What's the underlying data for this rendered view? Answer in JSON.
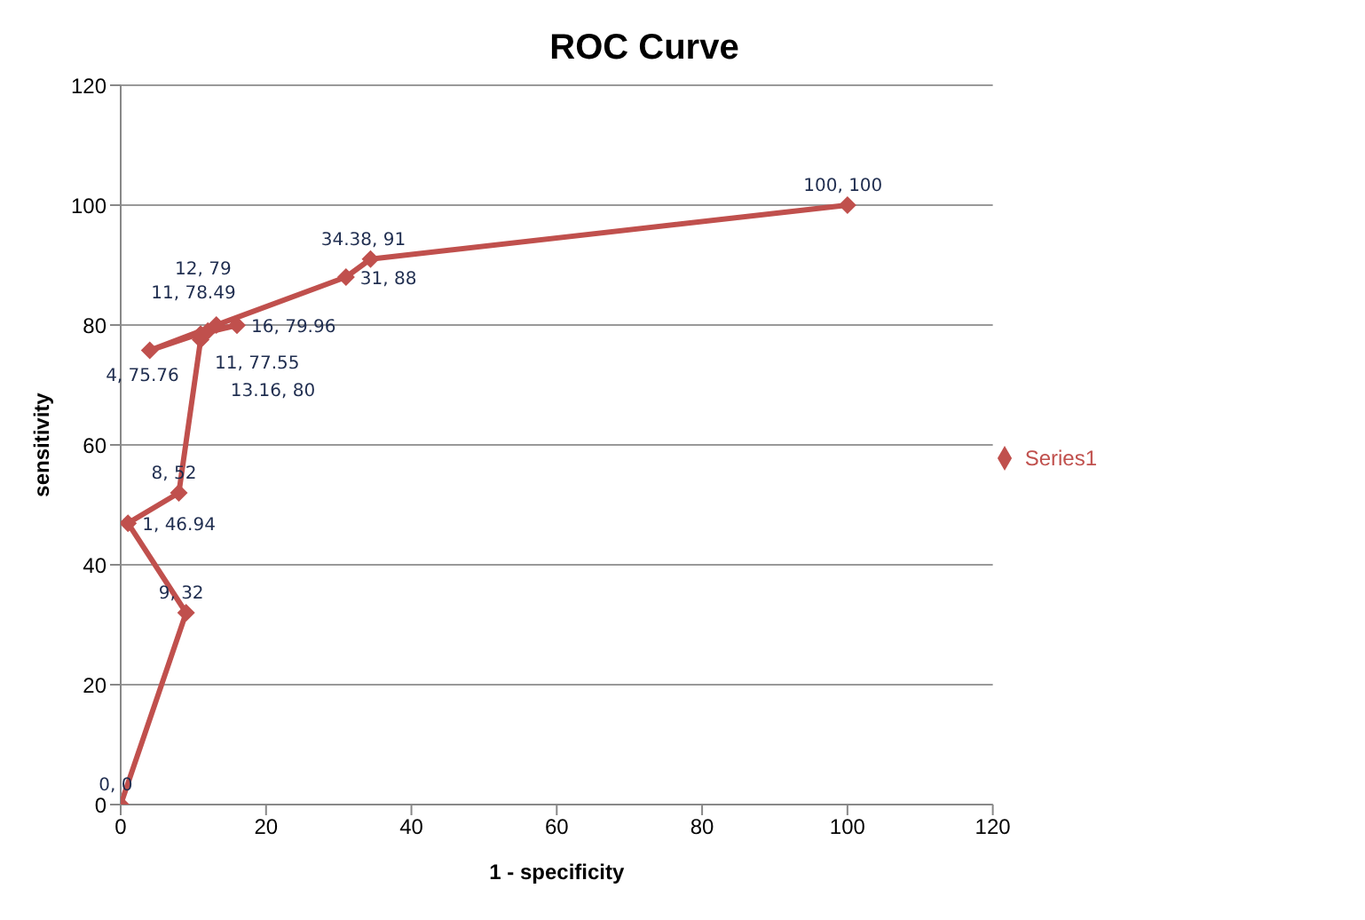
{
  "chart_data": {
    "type": "line",
    "title": "ROC Curve",
    "xlabel": "1 - specificity",
    "ylabel": "sensitivity",
    "x": [
      0,
      9,
      1,
      8,
      11,
      11,
      16,
      12,
      4,
      13.16,
      31,
      34.38,
      100
    ],
    "series": [
      {
        "name": "Series1",
        "color": "#c0504d",
        "values": [
          0,
          32,
          46.94,
          52,
          77.55,
          78.49,
          79.96,
          79,
          75.76,
          80,
          88,
          91,
          100
        ],
        "value_labels": [
          "0, 0",
          "9, 32",
          "1, 46.94",
          "8, 52",
          "11, 77.55",
          "11, 78.49",
          "16, 79.96",
          "12, 79",
          "4, 75.76",
          "13.16, 80",
          "31, 88",
          "34.38, 91",
          "100, 100"
        ]
      }
    ],
    "xlim": [
      0,
      120
    ],
    "xticks": [
      0,
      20,
      40,
      60,
      80,
      100,
      120
    ],
    "ylim": [
      0,
      120
    ],
    "yticks": [
      0,
      20,
      40,
      60,
      80,
      100,
      120
    ],
    "grid": "y",
    "legend": "right",
    "marker": "diamond",
    "line_style": "solid"
  }
}
